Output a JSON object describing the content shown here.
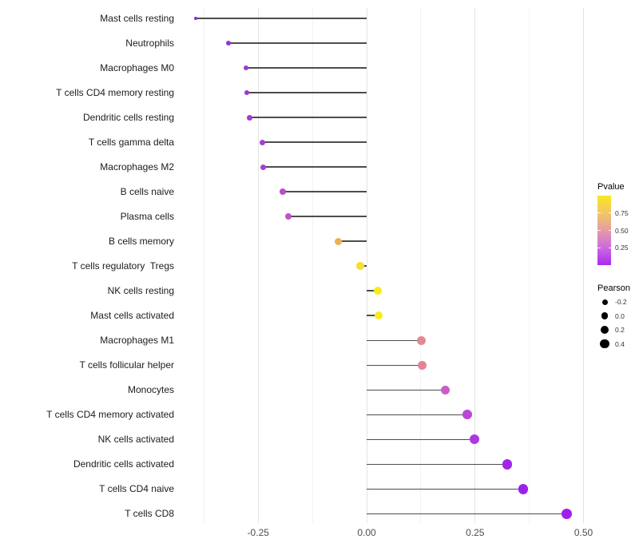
{
  "figure": {
    "background": "#ffffff"
  },
  "legend": {
    "pvalue": {
      "title": "Pvalue",
      "ticks": [
        "0.75",
        "0.50",
        "0.25"
      ],
      "gradient": [
        "#f9e721",
        "#f2c369",
        "#e59ba6",
        "#cd6ade",
        "#a92af0"
      ],
      "range": [
        0,
        1
      ]
    },
    "pearson": {
      "title": "Pearson",
      "items": [
        {
          "label": "-0.2",
          "diameter": 7.0
        },
        {
          "label": "0.0",
          "diameter": 8.8
        },
        {
          "label": "0.2",
          "diameter": 10.2
        },
        {
          "label": "0.4",
          "diameter": 11.4
        }
      ]
    }
  },
  "chart_data": {
    "type": "lollipop",
    "orientation": "horizontal",
    "title": "",
    "xlabel": "",
    "ylabel": "",
    "x_major_ticks": [
      -0.25,
      0,
      0.25,
      0.5
    ],
    "x_tick_labels": [
      "-0.25",
      "0.00",
      "0.25",
      "0.50"
    ],
    "x_minor_ticks": [
      -0.375,
      -0.125,
      0.125,
      0.375
    ],
    "xlim": [
      -0.44,
      0.51
    ],
    "grid": "vertical-only",
    "stem_color": "#4d4d4d",
    "color_encodes": "Pvalue",
    "size_encodes": "Pearson",
    "points": [
      {
        "label": "Mast cells resting",
        "pearson": -0.394,
        "color": "#8a2fd0",
        "diameter": 3.6
      },
      {
        "label": "Neutrophils",
        "pearson": -0.319,
        "color": "#9631d8",
        "diameter": 6.2
      },
      {
        "label": "Macrophages M0",
        "pearson": -0.278,
        "color": "#9f37d4",
        "diameter": 6.7
      },
      {
        "label": "T cells CD4 memory resting",
        "pearson": -0.276,
        "color": "#9f37d4",
        "diameter": 6.7
      },
      {
        "label": "Dendritic cells resting",
        "pearson": -0.269,
        "color": "#a33ad2",
        "diameter": 6.9
      },
      {
        "label": "T cells gamma delta",
        "pearson": -0.241,
        "color": "#a73ed0",
        "diameter": 7.2
      },
      {
        "label": "Macrophages M2",
        "pearson": -0.239,
        "color": "#a73ed0",
        "diameter": 7.2
      },
      {
        "label": "B cells naive",
        "pearson": -0.193,
        "color": "#b94ec8",
        "diameter": 7.8
      },
      {
        "label": "Plasma cells",
        "pearson": -0.18,
        "color": "#bd53c6",
        "diameter": 8.0
      },
      {
        "label": "B cells memory",
        "pearson": -0.066,
        "color": "#eeb052",
        "diameter": 9.2
      },
      {
        "label": "T cells regulatory  Tregs",
        "pearson": -0.015,
        "color": "#f2e032",
        "diameter": 9.7
      },
      {
        "label": "NK cells resting",
        "pearson": 0.025,
        "color": "#f6ec1c",
        "diameter": 10.0
      },
      {
        "label": "Mast cells activated",
        "pearson": 0.028,
        "color": "#f6ec1c",
        "diameter": 10.1
      },
      {
        "label": "Macrophages M1",
        "pearson": 0.126,
        "color": "#e18994",
        "diameter": 10.9
      },
      {
        "label": "T cells follicular helper",
        "pearson": 0.128,
        "color": "#df8596",
        "diameter": 11.0
      },
      {
        "label": "Monocytes",
        "pearson": 0.181,
        "color": "#c75ec6",
        "diameter": 11.4
      },
      {
        "label": "T cells CD4 memory activated",
        "pearson": 0.232,
        "color": "#ba47d8",
        "diameter": 11.8
      },
      {
        "label": "NK cells activated",
        "pearson": 0.249,
        "color": "#ad37e0",
        "diameter": 12.0
      },
      {
        "label": "Dendritic cells activated",
        "pearson": 0.324,
        "color": "#a026e8",
        "diameter": 12.5
      },
      {
        "label": "T cells CD4 naive",
        "pearson": 0.361,
        "color": "#9c20ea",
        "diameter": 12.9
      },
      {
        "label": "T cells CD8",
        "pearson": 0.461,
        "color": "#a21eea",
        "diameter": 13.6
      }
    ]
  }
}
